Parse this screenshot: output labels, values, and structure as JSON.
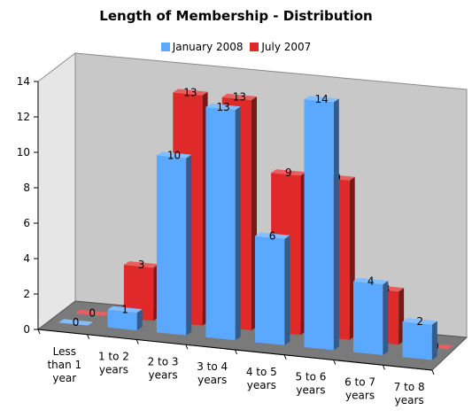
{
  "chart_data": {
    "type": "bar",
    "title": "Length of Membership - Distribution",
    "categories": [
      "Less than 1 year",
      "1 to 2 years",
      "2 to 3 years",
      "3 to 4 years",
      "4 to 5 years",
      "5 to 6 years",
      "6 to 7 years",
      "7 to 8 years"
    ],
    "category_lines": [
      [
        "Less",
        "than 1",
        "year"
      ],
      [
        "1 to 2",
        "years"
      ],
      [
        "2 to 3",
        "years"
      ],
      [
        "3 to 4",
        "years"
      ],
      [
        "4 to 5",
        "years"
      ],
      [
        "5 to 6",
        "years"
      ],
      [
        "6 to 7",
        "years"
      ],
      [
        "7 to 8",
        "years"
      ]
    ],
    "series": [
      {
        "name": "January 2008",
        "values": [
          0,
          1,
          10,
          13,
          6,
          14,
          4,
          2
        ],
        "color": "#5aa8ff"
      },
      {
        "name": "July 2007",
        "values": [
          0,
          3,
          13,
          13,
          9,
          9,
          3,
          0
        ],
        "color": "#e02a2a"
      }
    ],
    "yticks": [
      0,
      2,
      4,
      6,
      8,
      10,
      12,
      14
    ],
    "ylim": [
      0,
      14
    ],
    "grid": false,
    "legend_position": "top",
    "style": "3d-clustered-column",
    "wall_color": "#c8c8c8",
    "floor_color": "#7a7a7a"
  }
}
